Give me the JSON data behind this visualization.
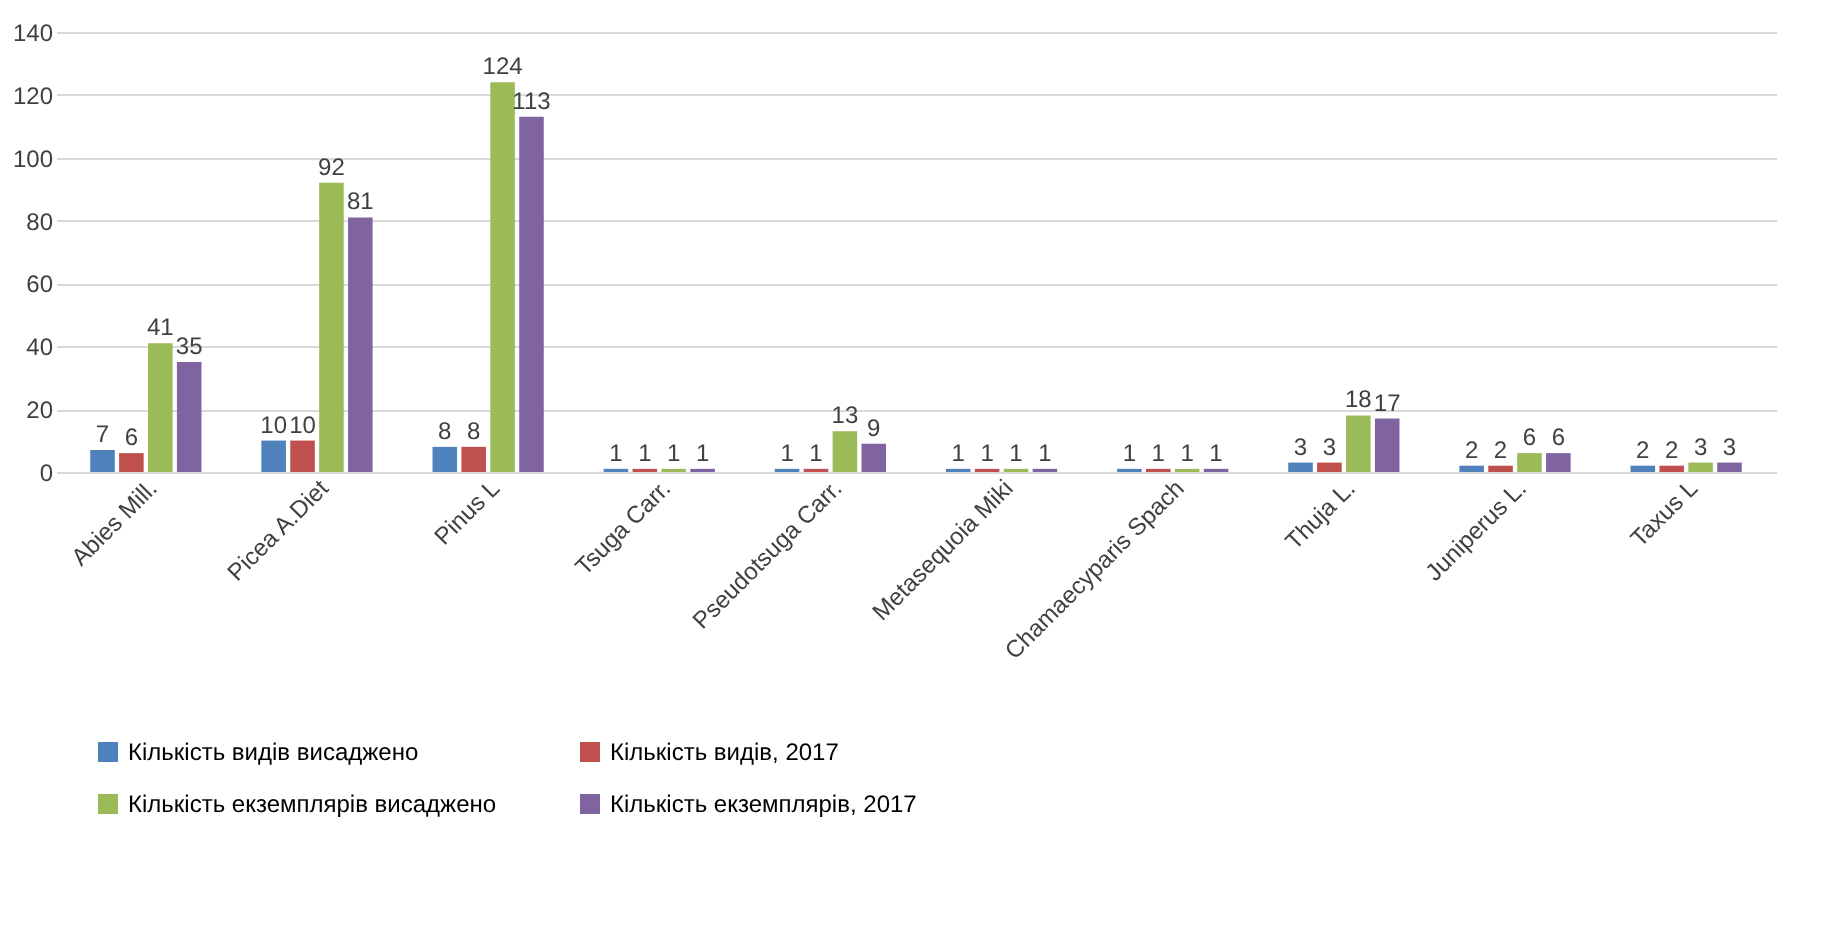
{
  "chart_data": {
    "type": "bar",
    "categories": [
      "Abies Mill.",
      "Picea A.Diet",
      "Pinus L",
      "Tsuga Carr.",
      "Pseudotsuga Carr.",
      "Metasequoia Miki",
      "Chamaecyparis Spach",
      "Thuja L.",
      "Juniperus L.",
      "Taxus L"
    ],
    "series": [
      {
        "name": "Кількість видів висаджено",
        "color": "#4f81bd",
        "values": [
          7,
          10,
          8,
          1,
          1,
          1,
          1,
          3,
          2,
          2
        ]
      },
      {
        "name": "Кількість видів, 2017",
        "color": "#c0504d",
        "values": [
          6,
          10,
          8,
          1,
          1,
          1,
          1,
          3,
          2,
          2
        ]
      },
      {
        "name": "Кількість екземплярів висаджено",
        "color": "#9bbb59",
        "values": [
          41,
          92,
          124,
          1,
          13,
          1,
          1,
          18,
          6,
          3
        ]
      },
      {
        "name": "Кількість екземплярів, 2017",
        "color": "#8064a2",
        "values": [
          35,
          81,
          113,
          1,
          9,
          1,
          1,
          17,
          6,
          3
        ]
      }
    ],
    "ylim": [
      0,
      140
    ],
    "yticks": [
      0,
      20,
      40,
      60,
      80,
      100,
      120,
      140
    ],
    "grid": "y",
    "legend": "bottom",
    "data_labels": true
  }
}
